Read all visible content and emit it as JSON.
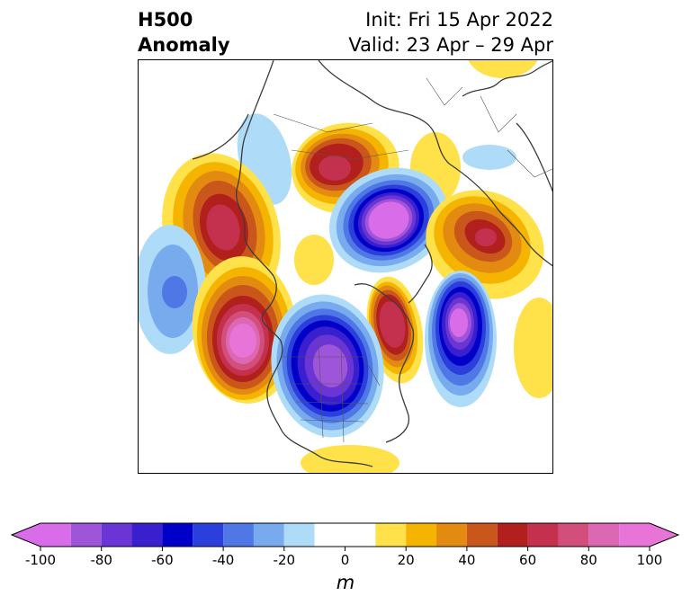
{
  "title": {
    "left_line1": "H500",
    "left_line2": "Anomaly",
    "right_line1": "Init: Fri 15 Apr 2022",
    "right_line2": "Valid: 23 Apr – 29 Apr"
  },
  "colorbar": {
    "unit": "m",
    "min": -100,
    "max": 100,
    "ticks": [
      -100,
      -80,
      -60,
      -40,
      -20,
      0,
      20,
      40,
      60,
      80,
      100
    ],
    "tick_labels": [
      "-100",
      "-80",
      "-60",
      "-40",
      "-20",
      "0",
      "20",
      "40",
      "60",
      "80",
      "100"
    ],
    "bounds": [
      -100,
      -90,
      -80,
      -70,
      -60,
      -50,
      -40,
      -30,
      -20,
      -10,
      10,
      20,
      30,
      40,
      50,
      60,
      70,
      80,
      90,
      100
    ],
    "colors": [
      "#d96ce8",
      "#9f55d9",
      "#6a35d4",
      "#3a1fcf",
      "#0000c8",
      "#2a3fdc",
      "#4f78e6",
      "#78aaee",
      "#aedcf8",
      "#ffffff",
      "#ffe14a",
      "#f5b400",
      "#e38a10",
      "#c9561a",
      "#b2201e",
      "#c4314e",
      "#d24f7c",
      "#dc68b4",
      "#e874d8"
    ],
    "extend": "both"
  },
  "map": {
    "projection": "polar-stereographic-north",
    "field": "500 hPa geopotential height anomaly",
    "anomaly_centers": [
      {
        "region": "northern Russia",
        "sign": "positive",
        "peak": 70
      },
      {
        "region": "Arctic Ocean north of Greenland",
        "sign": "negative",
        "peak": -100
      },
      {
        "region": "Greenland",
        "sign": "positive",
        "peak": 70
      },
      {
        "region": "Sea of Okhotsk",
        "sign": "positive",
        "peak": 70
      },
      {
        "region": "North Pacific",
        "sign": "negative",
        "peak": -40
      },
      {
        "region": "Gulf of Alaska",
        "sign": "positive",
        "peak": 100
      },
      {
        "region": "central North America",
        "sign": "negative",
        "peak": -90
      },
      {
        "region": "Hudson Bay / Labrador",
        "sign": "positive",
        "peak": 70
      },
      {
        "region": "North Atlantic",
        "sign": "negative",
        "peak": -100
      },
      {
        "region": "Western Europe",
        "sign": "positive",
        "peak": 20
      },
      {
        "region": "Central Asia",
        "sign": "negative",
        "peak": -20
      }
    ]
  }
}
